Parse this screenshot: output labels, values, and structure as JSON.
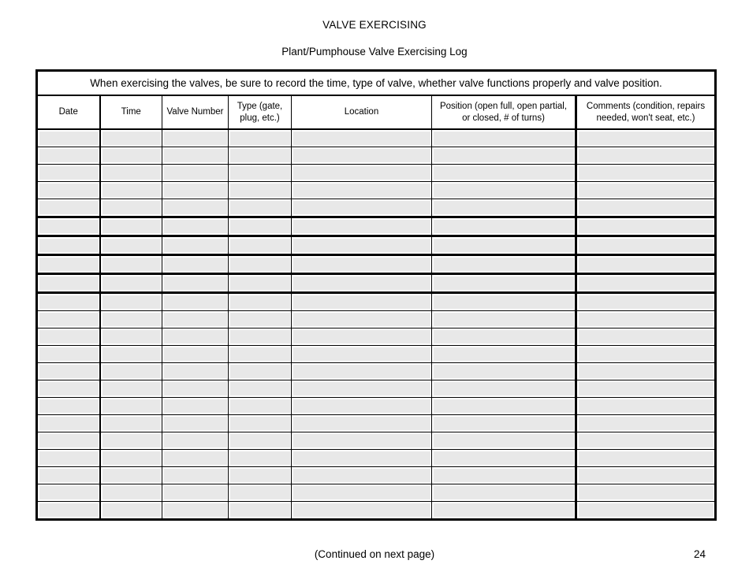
{
  "title": "VALVE EXERCISING",
  "subtitle": "Plant/Pumphouse Valve Exercising Log",
  "table": {
    "note": "When exercising the valves, be sure to record the time, type of valve, whether valve functions properly and valve position.",
    "columns": [
      {
        "label": "Date"
      },
      {
        "label": "Time"
      },
      {
        "label": "Valve Number"
      },
      {
        "label": "Type (gate, plug, etc.)"
      },
      {
        "label": "Location"
      },
      {
        "label": "Position (open full, open partial, or closed, # of turns)"
      },
      {
        "label": "Comments (condition, repairs needed, won't seat, etc.)"
      }
    ],
    "row_count": 22,
    "cell_value": ""
  },
  "footer": {
    "continued": "(Continued on next page)",
    "page_number": "24"
  },
  "colors": {
    "grid": "#000000",
    "cell_fill": "#e8e8e8",
    "background": "#ffffff"
  }
}
